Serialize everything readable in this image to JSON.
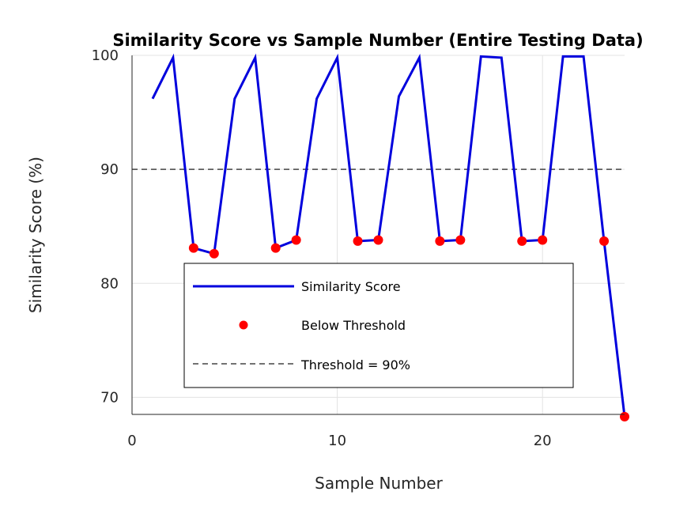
{
  "chart_data": {
    "type": "line",
    "title": "Similarity Score vs Sample Number (Entire Testing Data)",
    "xlabel": "Sample Number",
    "ylabel": "Similarity Score (%)",
    "xlim": [
      0,
      24
    ],
    "ylim": [
      68.5,
      100
    ],
    "x_ticks": [
      0,
      10,
      20
    ],
    "y_ticks": [
      70,
      80,
      90,
      100
    ],
    "grid": true,
    "legend_position": "center",
    "colors": {
      "line": "#0000dd",
      "marker": "#ff0000",
      "threshold": "#444444"
    },
    "series": [
      {
        "name": "Similarity Score",
        "x": [
          1,
          2,
          3,
          4,
          5,
          6,
          7,
          8,
          9,
          10,
          11,
          12,
          13,
          14,
          15,
          16,
          17,
          18,
          19,
          20,
          21,
          22,
          23,
          24
        ],
        "y": [
          96.2,
          99.8,
          83.1,
          82.6,
          96.2,
          99.8,
          83.1,
          83.8,
          96.2,
          99.8,
          83.7,
          83.8,
          96.4,
          99.8,
          83.7,
          83.8,
          99.9,
          99.8,
          83.7,
          83.8,
          99.9,
          99.9,
          83.7,
          68.3
        ]
      },
      {
        "name": "Below Threshold",
        "x": [
          3,
          4,
          7,
          8,
          11,
          12,
          15,
          16,
          19,
          20,
          23,
          24
        ],
        "y": [
          83.1,
          82.6,
          83.1,
          83.8,
          83.7,
          83.8,
          83.7,
          83.8,
          83.7,
          83.8,
          83.7,
          68.3
        ]
      },
      {
        "name": "Threshold = 90%",
        "y": 90
      }
    ]
  }
}
